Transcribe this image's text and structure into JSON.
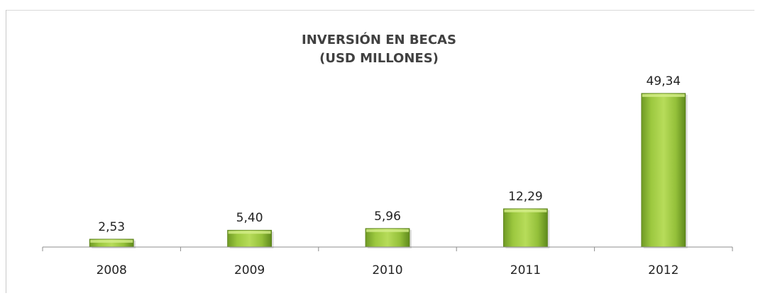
{
  "chart_data": {
    "type": "bar",
    "title": "INVERSIÓN EN BECAS",
    "subtitle": "(USD MILLONES)",
    "categories": [
      "2008",
      "2009",
      "2010",
      "2011",
      "2012"
    ],
    "values": [
      2.53,
      5.4,
      5.96,
      12.29,
      49.34
    ],
    "data_labels": [
      "2,53",
      "5,40",
      "5,96",
      "12,29",
      "49,34"
    ],
    "xlabel": "",
    "ylabel": "",
    "ylim": [
      0,
      55
    ],
    "grid": false,
    "legend": "none",
    "bar_color": "#8db83a"
  }
}
